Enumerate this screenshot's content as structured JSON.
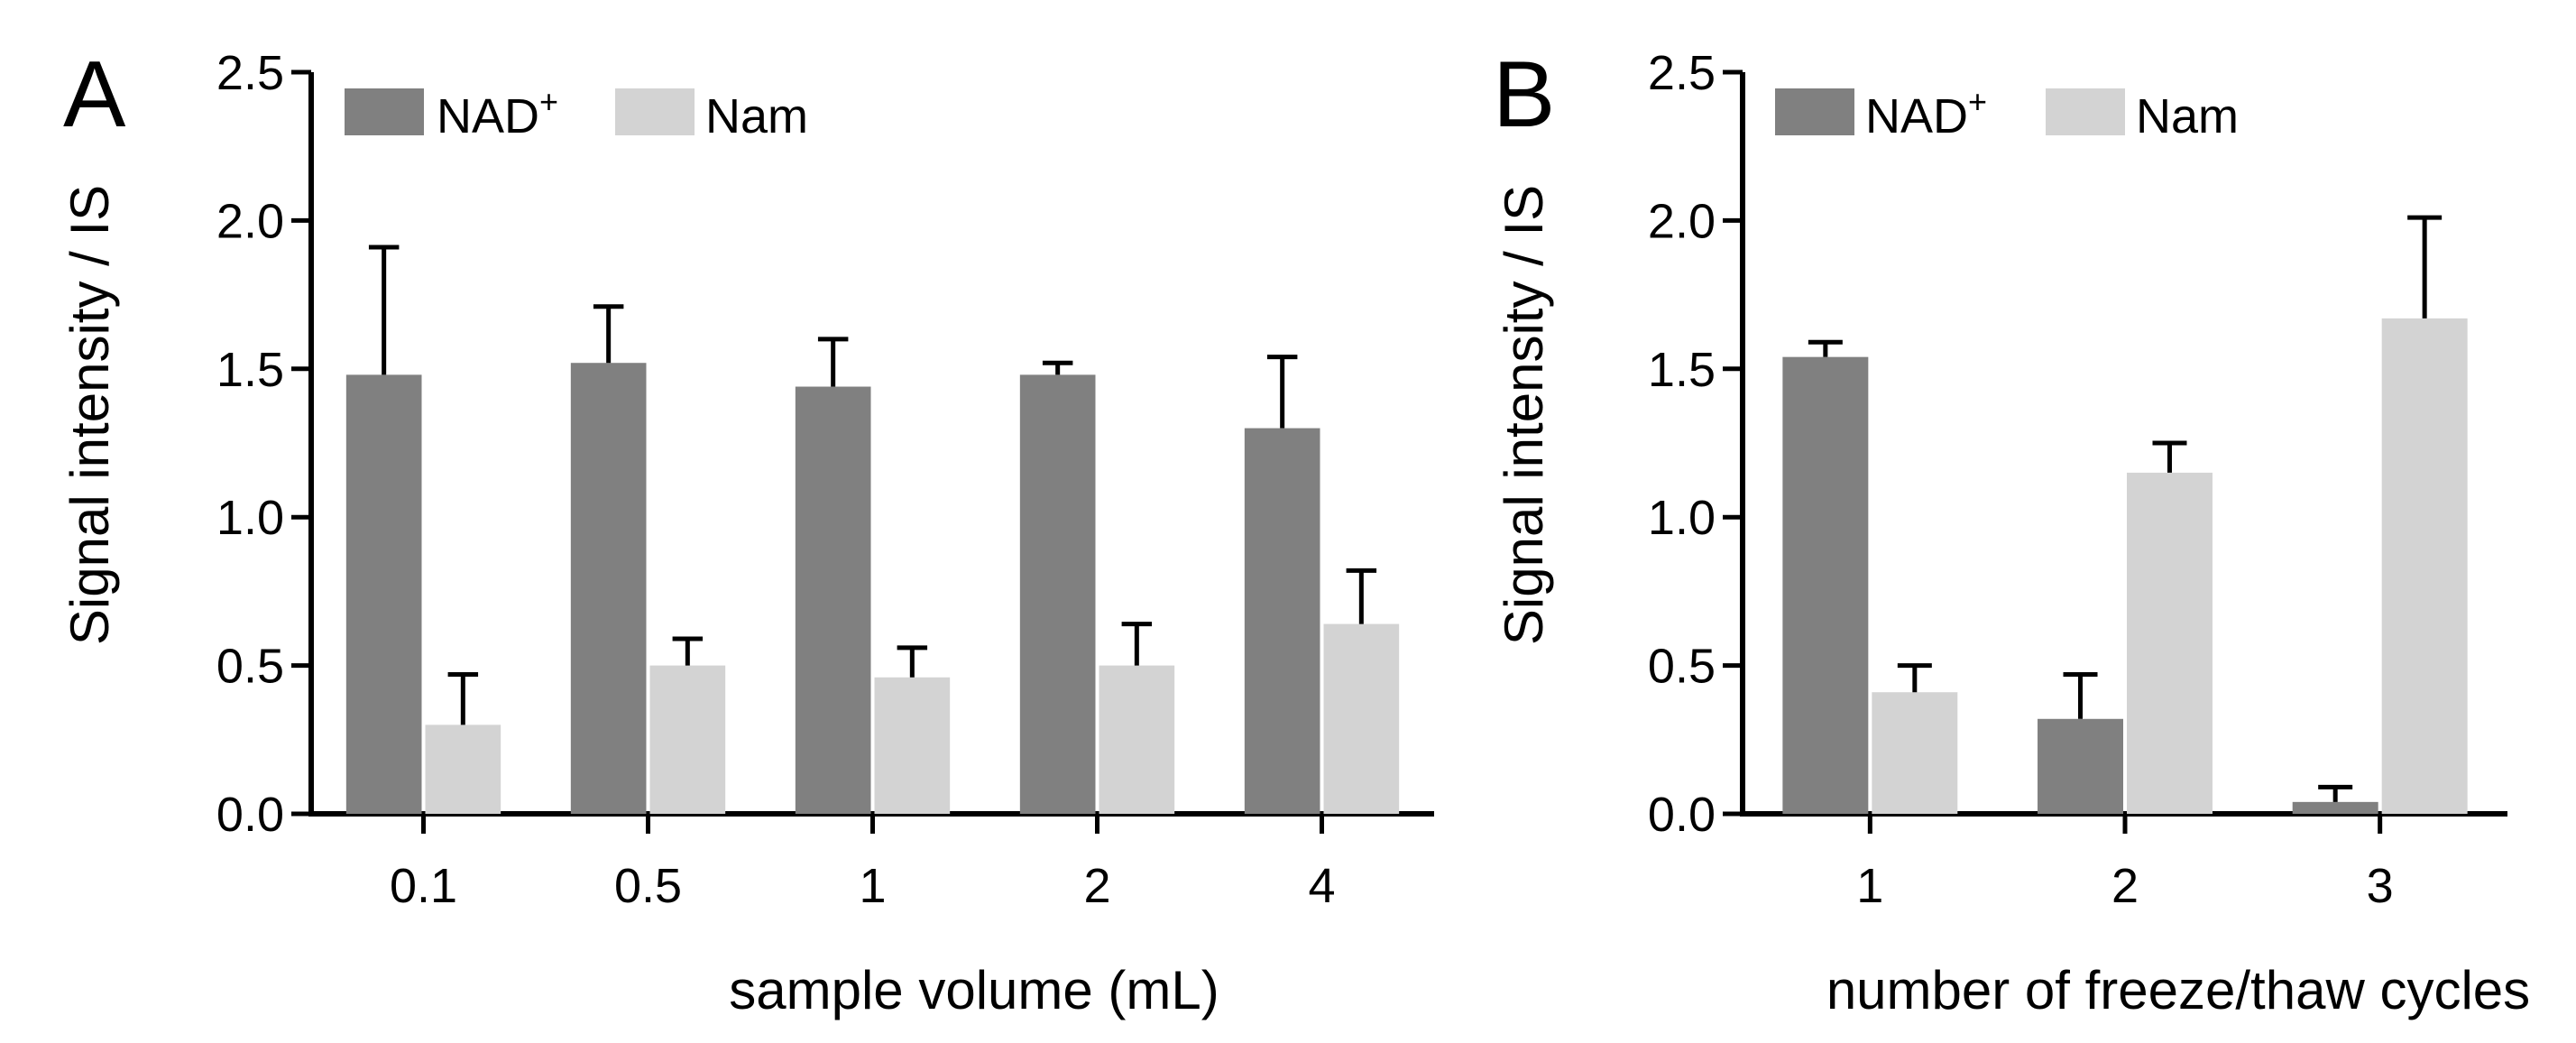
{
  "colors": {
    "nad": "#808080",
    "nam": "#d3d3d3",
    "axis": "#000000",
    "error": "#000000"
  },
  "chart_data": [
    {
      "type": "bar",
      "panel": "A",
      "categories": [
        "0.1",
        "0.5",
        "1",
        "2",
        "4"
      ],
      "series": [
        {
          "name": "NAD+",
          "label_base": "NAD",
          "label_sup": "+",
          "values": [
            1.48,
            1.52,
            1.44,
            1.48,
            1.3
          ],
          "errors": [
            0.43,
            0.19,
            0.16,
            0.04,
            0.24
          ]
        },
        {
          "name": "Nam",
          "label_base": "Nam",
          "label_sup": "",
          "values": [
            0.3,
            0.5,
            0.46,
            0.5,
            0.64
          ],
          "errors": [
            0.17,
            0.09,
            0.1,
            0.14,
            0.18
          ]
        }
      ],
      "xlabel": "sample volume (mL)",
      "ylabel": "Signal intensity / IS",
      "ylim": [
        0,
        2.5
      ],
      "yticks": [
        "0.0",
        "0.5",
        "1.0",
        "1.5",
        "2.0",
        "2.5"
      ],
      "legend": "top-left",
      "grid": false
    },
    {
      "type": "bar",
      "panel": "B",
      "categories": [
        "1",
        "2",
        "3"
      ],
      "series": [
        {
          "name": "NAD+",
          "label_base": "NAD",
          "label_sup": "+",
          "values": [
            1.54,
            0.32,
            0.04
          ],
          "errors": [
            0.05,
            0.15,
            0.05
          ]
        },
        {
          "name": "Nam",
          "label_base": "Nam",
          "label_sup": "",
          "values": [
            0.41,
            1.15,
            1.67
          ],
          "errors": [
            0.09,
            0.1,
            0.34
          ]
        }
      ],
      "xlabel": "number of freeze/thaw cycles",
      "ylabel": "Signal intensity / IS",
      "ylim": [
        0,
        2.5
      ],
      "yticks": [
        "0.0",
        "0.5",
        "1.0",
        "1.5",
        "2.0",
        "2.5"
      ],
      "legend": "top-left",
      "grid": false
    }
  ]
}
